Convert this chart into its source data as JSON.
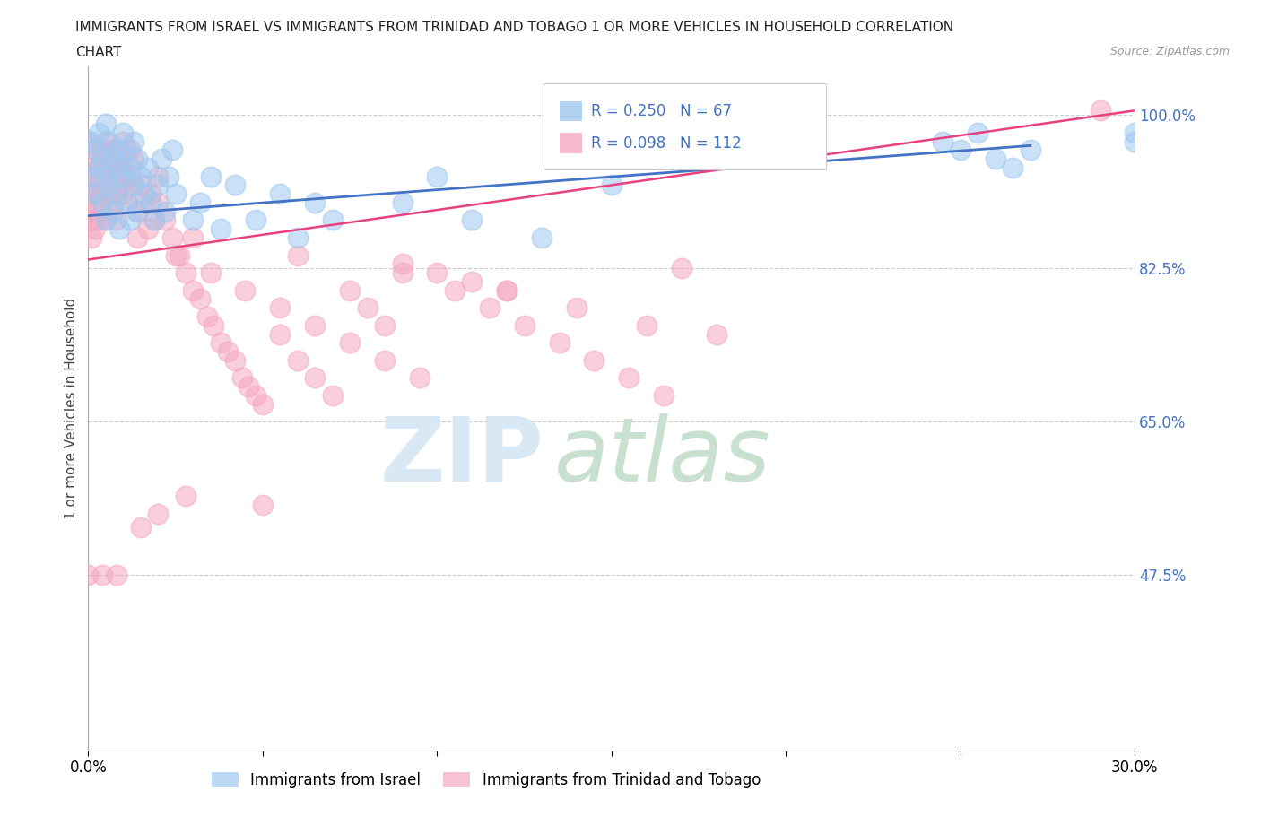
{
  "title_line1": "IMMIGRANTS FROM ISRAEL VS IMMIGRANTS FROM TRINIDAD AND TOBAGO 1 OR MORE VEHICLES IN HOUSEHOLD CORRELATION",
  "title_line2": "CHART",
  "source": "Source: ZipAtlas.com",
  "ylabel": "1 or more Vehicles in Household",
  "xmin": 0.0,
  "xmax": 0.3,
  "ymin": 0.275,
  "ymax": 1.055,
  "yticks": [
    0.475,
    0.65,
    0.825,
    1.0
  ],
  "ytick_labels": [
    "47.5%",
    "65.0%",
    "82.5%",
    "100.0%"
  ],
  "xticks": [
    0.0,
    0.05,
    0.1,
    0.15,
    0.2,
    0.25,
    0.3
  ],
  "xtick_labels": [
    "0.0%",
    "",
    "",
    "",
    "",
    "",
    "30.0%"
  ],
  "color_israel": "#9ec8f0",
  "color_tt": "#f5a8c0",
  "line_israel": "#4472c4",
  "line_tt": "#e84080",
  "israel_R": 0.25,
  "israel_N": 67,
  "tt_R": 0.098,
  "tt_N": 112,
  "legend_israel": "Immigrants from Israel",
  "legend_tt": "Immigrants from Trinidad and Tobago",
  "israel_line_x0": 0.0,
  "israel_line_y0": 0.885,
  "israel_line_x1": 0.27,
  "israel_line_y1": 0.965,
  "tt_line_x0": 0.0,
  "tt_line_y0": 0.835,
  "tt_line_x1": 0.3,
  "tt_line_y1": 1.005
}
